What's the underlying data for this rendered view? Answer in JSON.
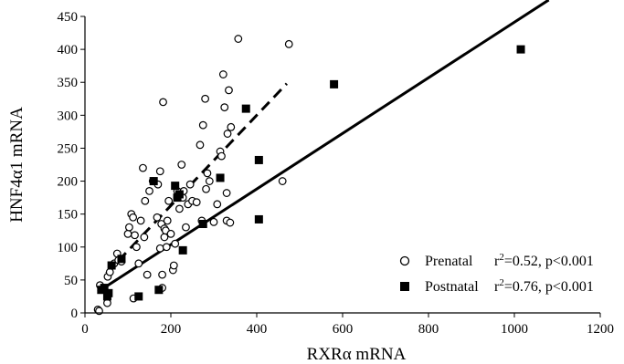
{
  "chart_data": {
    "type": "scatter",
    "title": "",
    "xlabel": "RXRα mRNA",
    "ylabel": "HNF4α1 mRNA",
    "xlim": [
      0,
      1200
    ],
    "ylim": [
      0,
      450
    ],
    "xticks": [
      0,
      200,
      400,
      600,
      800,
      1000,
      1200
    ],
    "yticks": [
      0,
      50,
      100,
      150,
      200,
      250,
      300,
      350,
      400,
      450
    ],
    "grid": false,
    "legend_position": "bottom-right",
    "series": [
      {
        "name": "Prenatal",
        "marker": "open-circle",
        "stat": "r²=0.52, p<0.001",
        "stat_prefix": "r",
        "stat_sup": "2",
        "stat_rest": "=0.52, p<0.001",
        "trendline": {
          "style": "dashed",
          "x": [
            50,
            470
          ],
          "y": [
            60,
            348
          ]
        },
        "points": [
          [
            30,
            5
          ],
          [
            33,
            3
          ],
          [
            35,
            42
          ],
          [
            52,
            15
          ],
          [
            53,
            55
          ],
          [
            58,
            62
          ],
          [
            68,
            75
          ],
          [
            75,
            90
          ],
          [
            78,
            80
          ],
          [
            85,
            78
          ],
          [
            100,
            120
          ],
          [
            103,
            130
          ],
          [
            108,
            150
          ],
          [
            112,
            145
          ],
          [
            113,
            22
          ],
          [
            116,
            118
          ],
          [
            120,
            100
          ],
          [
            125,
            75
          ],
          [
            130,
            140
          ],
          [
            135,
            220
          ],
          [
            138,
            115
          ],
          [
            140,
            170
          ],
          [
            145,
            58
          ],
          [
            150,
            185
          ],
          [
            158,
            200
          ],
          [
            168,
            145
          ],
          [
            170,
            195
          ],
          [
            175,
            215
          ],
          [
            175,
            98
          ],
          [
            178,
            135
          ],
          [
            180,
            38
          ],
          [
            180,
            58
          ],
          [
            182,
            320
          ],
          [
            185,
            128
          ],
          [
            185,
            115
          ],
          [
            188,
            125
          ],
          [
            190,
            100
          ],
          [
            192,
            140
          ],
          [
            195,
            170
          ],
          [
            200,
            120
          ],
          [
            205,
            65
          ],
          [
            207,
            72
          ],
          [
            210,
            105
          ],
          [
            215,
            185
          ],
          [
            220,
            158
          ],
          [
            225,
            225
          ],
          [
            228,
            175
          ],
          [
            230,
            185
          ],
          [
            235,
            130
          ],
          [
            240,
            165
          ],
          [
            245,
            195
          ],
          [
            250,
            170
          ],
          [
            260,
            168
          ],
          [
            268,
            255
          ],
          [
            272,
            140
          ],
          [
            275,
            285
          ],
          [
            280,
            325
          ],
          [
            282,
            188
          ],
          [
            285,
            212
          ],
          [
            290,
            200
          ],
          [
            300,
            138
          ],
          [
            308,
            165
          ],
          [
            315,
            245
          ],
          [
            318,
            238
          ],
          [
            322,
            362
          ],
          [
            325,
            312
          ],
          [
            330,
            182
          ],
          [
            330,
            140
          ],
          [
            332,
            272
          ],
          [
            335,
            338
          ],
          [
            338,
            137
          ],
          [
            340,
            282
          ],
          [
            357,
            416
          ],
          [
            460,
            200
          ],
          [
            475,
            408
          ]
        ]
      },
      {
        "name": "Postnatal",
        "marker": "filled-square",
        "stat": "r²=0.76, p<0.001",
        "stat_prefix": "r",
        "stat_sup": "2",
        "stat_rest": "=0.76, p<0.001",
        "trendline": {
          "style": "solid",
          "x": [
            30,
            1080
          ],
          "y": [
            32,
            475
          ]
        },
        "points": [
          [
            38,
            35
          ],
          [
            45,
            38
          ],
          [
            52,
            25
          ],
          [
            55,
            30
          ],
          [
            62,
            72
          ],
          [
            85,
            82
          ],
          [
            125,
            25
          ],
          [
            160,
            200
          ],
          [
            172,
            35
          ],
          [
            210,
            193
          ],
          [
            215,
            175
          ],
          [
            220,
            180
          ],
          [
            228,
            95
          ],
          [
            275,
            135
          ],
          [
            315,
            205
          ],
          [
            375,
            310
          ],
          [
            405,
            232
          ],
          [
            405,
            142
          ],
          [
            580,
            347
          ],
          [
            1015,
            400
          ]
        ]
      }
    ]
  }
}
